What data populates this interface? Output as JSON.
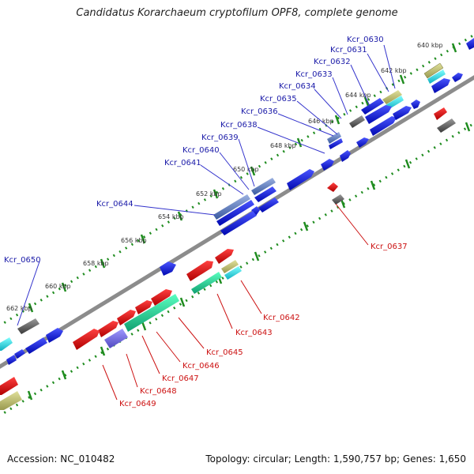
{
  "title": "Candidatus Korarchaeum cryptofilum OPF8, complete genome",
  "footer": {
    "accession": "Accession: NC_010482",
    "summary": "Topology: circular; Length: 1,590,757 bp; Genes: 1,650"
  },
  "colors": {
    "forward_gene": "#0a14d8",
    "reverse_gene": "#e01010",
    "genome_line": "#8c8c8c",
    "dotted_track": "#1f8c1f",
    "forward_label": "#1a1aa8",
    "reverse_label": "#cc1111"
  },
  "kbp_labels": [
    "640 kbp",
    "642 kbp",
    "644 kbp",
    "646 kbp",
    "648 kbp",
    "650 kbp",
    "652 kbp",
    "654 kbp",
    "656 kbp",
    "658 kbp",
    "660 kbp",
    "662 kbp"
  ],
  "forward_labels": [
    "Kcr_0630",
    "Kcr_0631",
    "Kcr_0632",
    "Kcr_0633",
    "Kcr_0634",
    "Kcr_0635",
    "Kcr_0636",
    "Kcr_0638",
    "Kcr_0639",
    "Kcr_0640",
    "Kcr_0641",
    "Kcr_0644",
    "Kcr_0650"
  ],
  "reverse_labels": [
    "Kcr_0637",
    "Kcr_0642",
    "Kcr_0643",
    "Kcr_0645",
    "Kcr_0646",
    "Kcr_0647",
    "Kcr_0648",
    "Kcr_0649"
  ]
}
